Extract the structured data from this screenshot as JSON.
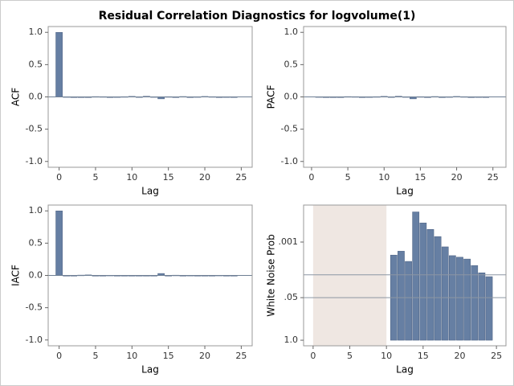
{
  "title": "Residual Correlation Diagnostics for logvolume(1)",
  "chart_data": [
    {
      "type": "bar",
      "xlabel": "Lag",
      "ylabel": "ACF",
      "color": "#667fa3",
      "x": [
        0,
        1,
        2,
        3,
        4,
        5,
        6,
        7,
        8,
        9,
        10,
        11,
        12,
        13,
        14,
        15,
        16,
        17,
        18,
        19,
        20,
        21,
        22,
        23,
        24
      ],
      "values": [
        1.0,
        0.003,
        -0.004,
        -0.008,
        -0.01,
        0.005,
        0.004,
        -0.003,
        0.002,
        0.004,
        0.008,
        0.002,
        0.01,
        0.003,
        -0.03,
        0.004,
        -0.004,
        0.006,
        -0.002,
        0.003,
        0.007,
        0.004,
        -0.003,
        0.002,
        0.001
      ],
      "xlim": [
        -1.5,
        26.5
      ],
      "ylim": [
        -1.09,
        1.09
      ],
      "xticks": [
        0,
        5,
        10,
        15,
        20,
        25
      ],
      "yticks": [
        {
          "value": 1,
          "label": "1.0"
        },
        0.5,
        {
          "value": 0,
          "label": "0.0"
        },
        -0.5,
        {
          "value": -1,
          "label": "-1.0"
        }
      ],
      "reference_lines": [
        0
      ]
    },
    {
      "type": "bar",
      "xlabel": "Lag",
      "ylabel": "PACF",
      "color": "#667fa3",
      "x": [
        1,
        2,
        3,
        4,
        5,
        6,
        7,
        8,
        9,
        10,
        11,
        12,
        13,
        14,
        15,
        16,
        17,
        18,
        19,
        20,
        21,
        22,
        23,
        24
      ],
      "values": [
        0.003,
        -0.004,
        -0.008,
        -0.01,
        0.005,
        0.004,
        -0.003,
        0.002,
        0.004,
        0.008,
        0.002,
        0.01,
        0.003,
        -0.03,
        0.004,
        -0.004,
        0.006,
        -0.002,
        0.003,
        0.007,
        0.004,
        -0.003,
        0.002,
        0.001
      ],
      "xlim": [
        -1.1,
        26.8
      ],
      "ylim": [
        -1.09,
        1.09
      ],
      "xticks": [
        0,
        5,
        10,
        15,
        20,
        25
      ],
      "yticks": [
        {
          "value": 1,
          "label": "1.0"
        },
        0.5,
        {
          "value": 0,
          "label": "0.0"
        },
        -0.5,
        {
          "value": -1,
          "label": "-1.0"
        }
      ],
      "reference_lines": [
        0
      ]
    },
    {
      "type": "bar",
      "xlabel": "Lag",
      "ylabel": "IACF",
      "color": "#667fa3",
      "x": [
        0,
        1,
        2,
        3,
        4,
        5,
        6,
        7,
        8,
        9,
        10,
        11,
        12,
        13,
        14,
        15,
        16,
        17,
        18,
        19,
        20,
        21,
        22,
        23,
        24
      ],
      "values": [
        1.0,
        -0.003,
        -0.004,
        0.005,
        0.008,
        -0.005,
        -0.004,
        0.003,
        -0.002,
        -0.004,
        -0.008,
        -0.002,
        -0.01,
        -0.003,
        0.03,
        -0.004,
        0.004,
        -0.006,
        0.002,
        -0.003,
        -0.007,
        -0.004,
        0.003,
        -0.002,
        -0.001
      ],
      "xlim": [
        -1.5,
        26.5
      ],
      "ylim": [
        -1.09,
        1.09
      ],
      "xticks": [
        0,
        5,
        10,
        15,
        20,
        25
      ],
      "yticks": [
        {
          "value": 1,
          "label": "1.0"
        },
        0.5,
        {
          "value": 0,
          "label": "0.0"
        },
        -0.5,
        {
          "value": -1,
          "label": "-1.0"
        }
      ],
      "reference_lines": [
        0
      ]
    },
    {
      "type": "bar",
      "xlabel": "Lag",
      "ylabel": "White Noise Prob",
      "color": "#667fa3",
      "x": [
        11,
        12,
        13,
        14,
        15,
        16,
        17,
        18,
        19,
        20,
        21,
        22,
        23,
        24
      ],
      "values": [
        0.0025,
        0.0019,
        0.0039,
        0.00012,
        0.00026,
        0.00041,
        0.00068,
        0.0014,
        0.0026,
        0.0029,
        0.0033,
        0.0052,
        0.0087,
        0.0114
      ],
      "xlim": [
        -1.3,
        26.3
      ],
      "ylim": [
        1.48,
        7.4e-05
      ],
      "log_scale": true,
      "xticks": [
        0,
        5,
        10,
        15,
        20,
        25
      ],
      "yticks": [
        {
          "value": 0.001,
          "label": ".001"
        },
        {
          "value": 0.05,
          "label": ".05"
        },
        {
          "value": 1,
          "label": "1.0"
        }
      ],
      "reference_lines": [
        0.01,
        0.05
      ],
      "shaded_region": [
        0,
        10
      ]
    }
  ]
}
